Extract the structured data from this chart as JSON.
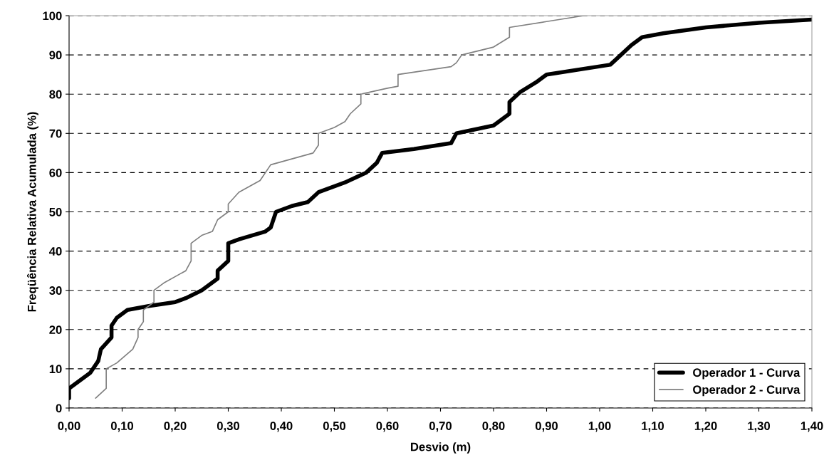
{
  "chart_data": {
    "type": "line",
    "xlabel": "Desvio (m)",
    "ylabel": "Freqüência Relativa Acumulada (%)",
    "xlim": [
      0,
      1.4
    ],
    "ylim": [
      0,
      100
    ],
    "xticks": [
      {
        "value": 0,
        "label": "0,00"
      },
      {
        "value": 0.1,
        "label": "0,10"
      },
      {
        "value": 0.2,
        "label": "0,20"
      },
      {
        "value": 0.3,
        "label": "0,30"
      },
      {
        "value": 0.4,
        "label": "0,40"
      },
      {
        "value": 0.5,
        "label": "0,50"
      },
      {
        "value": 0.6,
        "label": "0,60"
      },
      {
        "value": 0.7,
        "label": "0,70"
      },
      {
        "value": 0.8,
        "label": "0,80"
      },
      {
        "value": 0.9,
        "label": "0,90"
      },
      {
        "value": 1.0,
        "label": "1,00"
      },
      {
        "value": 1.1,
        "label": "1,10"
      },
      {
        "value": 1.2,
        "label": "1,20"
      },
      {
        "value": 1.3,
        "label": "1,30"
      },
      {
        "value": 1.4,
        "label": "1,40"
      }
    ],
    "yticks": [
      0,
      10,
      20,
      30,
      40,
      50,
      60,
      70,
      80,
      90,
      100
    ],
    "grid": "y",
    "legend": "bottom right",
    "marker": "none",
    "line_style": "solid",
    "series": [
      {
        "name": "Operador 1 - Curva",
        "color": "#000000",
        "x": [
          0.0,
          0.0,
          0.02,
          0.04,
          0.055,
          0.06,
          0.07,
          0.08,
          0.08,
          0.09,
          0.11,
          0.15,
          0.2,
          0.22,
          0.25,
          0.28,
          0.28,
          0.3,
          0.3,
          0.32,
          0.37,
          0.38,
          0.39,
          0.42,
          0.45,
          0.47,
          0.52,
          0.56,
          0.58,
          0.59,
          0.65,
          0.72,
          0.73,
          0.8,
          0.83,
          0.83,
          0.85,
          0.88,
          0.9,
          1.02,
          1.04,
          1.06,
          1.08,
          1.12,
          1.2,
          1.3,
          1.4
        ],
        "values": [
          2.5,
          5,
          7,
          9,
          12,
          15,
          16.5,
          18,
          21,
          23,
          25,
          26,
          27,
          28,
          30,
          33,
          35,
          37.5,
          42,
          43,
          45,
          46,
          50,
          51.5,
          52.5,
          55,
          57.5,
          60,
          62.5,
          65,
          66,
          67.5,
          70,
          72,
          75,
          78,
          80.5,
          83,
          85,
          87.5,
          90,
          92.5,
          94.5,
          95.5,
          97,
          98.2,
          99
        ]
      },
      {
        "name": "Operador 2 - Curva",
        "color": "#808080",
        "x": [
          0.05,
          0.07,
          0.07,
          0.09,
          0.12,
          0.13,
          0.13,
          0.14,
          0.14,
          0.16,
          0.16,
          0.18,
          0.22,
          0.23,
          0.23,
          0.25,
          0.27,
          0.28,
          0.3,
          0.3,
          0.32,
          0.36,
          0.38,
          0.42,
          0.46,
          0.47,
          0.47,
          0.5,
          0.52,
          0.53,
          0.55,
          0.55,
          0.6,
          0.62,
          0.62,
          0.72,
          0.73,
          0.74,
          0.8,
          0.83,
          0.83,
          0.9,
          0.97
        ],
        "values": [
          2.5,
          5,
          10,
          11.5,
          15,
          18,
          20,
          22,
          25,
          27,
          30,
          32,
          35,
          37.5,
          42,
          44,
          45,
          48,
          50,
          52,
          55,
          58,
          62,
          63.5,
          65,
          67,
          70,
          71.5,
          73,
          75,
          77.5,
          80,
          81.5,
          82,
          85,
          87,
          88,
          90,
          92,
          94.5,
          97,
          98.5,
          100
        ]
      }
    ]
  }
}
